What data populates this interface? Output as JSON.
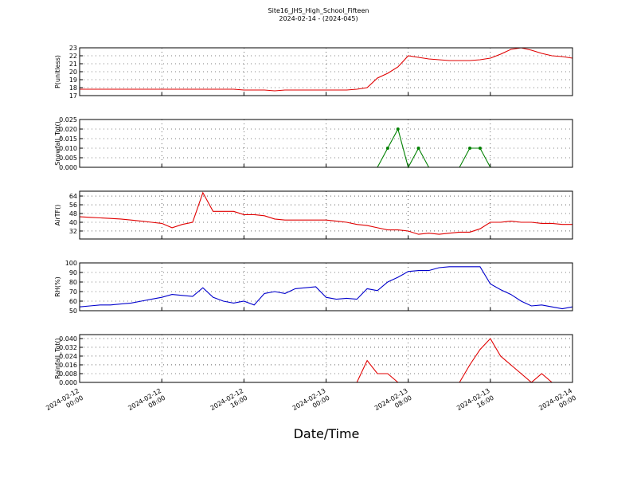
{
  "chart_data": [
    {
      "type": "line",
      "title": "Site16_JHS_High_School_Fifteen",
      "subtitle": "2024-02-14 - (2024-045)",
      "ylabel": "P(unitless)",
      "grid": true,
      "ylim": [
        17,
        23
      ],
      "yticks": [
        17,
        18,
        19,
        20,
        21,
        22,
        23
      ],
      "x": [
        "2024-02-12 00:00",
        "2024-02-12 01:00",
        "2024-02-12 02:00",
        "2024-02-12 03:00",
        "2024-02-12 04:00",
        "2024-02-12 05:00",
        "2024-02-12 06:00",
        "2024-02-12 07:00",
        "2024-02-12 08:00",
        "2024-02-12 09:00",
        "2024-02-12 10:00",
        "2024-02-12 11:00",
        "2024-02-12 12:00",
        "2024-02-12 13:00",
        "2024-02-12 14:00",
        "2024-02-12 15:00",
        "2024-02-12 16:00",
        "2024-02-12 17:00",
        "2024-02-12 18:00",
        "2024-02-12 19:00",
        "2024-02-12 20:00",
        "2024-02-12 21:00",
        "2024-02-12 22:00",
        "2024-02-12 23:00",
        "2024-02-13 00:00",
        "2024-02-13 01:00",
        "2024-02-13 02:00",
        "2024-02-13 03:00",
        "2024-02-13 04:00",
        "2024-02-13 05:00",
        "2024-02-13 06:00",
        "2024-02-13 07:00",
        "2024-02-13 08:00",
        "2024-02-13 09:00",
        "2024-02-13 10:00",
        "2024-02-13 11:00",
        "2024-02-13 12:00",
        "2024-02-13 13:00",
        "2024-02-13 14:00",
        "2024-02-13 15:00",
        "2024-02-13 16:00",
        "2024-02-13 17:00",
        "2024-02-13 18:00",
        "2024-02-13 19:00",
        "2024-02-13 20:00",
        "2024-02-13 21:00",
        "2024-02-13 22:00",
        "2024-02-13 23:00",
        "2024-02-14 00:00"
      ],
      "series": [
        {
          "name": "P",
          "color": "#e00000",
          "values": [
            17.8,
            17.8,
            17.8,
            17.8,
            17.8,
            17.8,
            17.8,
            17.8,
            17.8,
            17.8,
            17.8,
            17.8,
            17.8,
            17.8,
            17.8,
            17.8,
            17.7,
            17.7,
            17.7,
            17.6,
            17.7,
            17.7,
            17.7,
            17.7,
            17.7,
            17.7,
            17.7,
            17.8,
            18.0,
            19.2,
            19.8,
            20.6,
            22.0,
            21.8,
            21.6,
            21.5,
            21.4,
            21.4,
            21.4,
            21.5,
            21.7,
            22.2,
            22.8,
            23.0,
            22.7,
            22.3,
            22.0,
            21.9,
            21.7
          ]
        }
      ]
    },
    {
      "type": "line",
      "ylabel": "Snowfall_Tot()",
      "grid": true,
      "ylim": [
        0,
        0.025
      ],
      "yticks": [
        {
          "value": 0,
          "label": "0.000"
        },
        {
          "value": 0.005,
          "label": "0.005"
        },
        {
          "value": 0.01,
          "label": "0.010"
        },
        {
          "value": 0.015,
          "label": "0.015"
        },
        {
          "value": 0.02,
          "label": "0.020"
        },
        {
          "value": 0.025,
          "label": "0.025"
        }
      ],
      "x": [
        "2024-02-12 00:00",
        "2024-02-12 01:00",
        "2024-02-12 02:00",
        "2024-02-12 03:00",
        "2024-02-12 04:00",
        "2024-02-12 05:00",
        "2024-02-12 06:00",
        "2024-02-12 07:00",
        "2024-02-12 08:00",
        "2024-02-12 09:00",
        "2024-02-12 10:00",
        "2024-02-12 11:00",
        "2024-02-12 12:00",
        "2024-02-12 13:00",
        "2024-02-12 14:00",
        "2024-02-12 15:00",
        "2024-02-12 16:00",
        "2024-02-12 17:00",
        "2024-02-12 18:00",
        "2024-02-12 19:00",
        "2024-02-12 20:00",
        "2024-02-12 21:00",
        "2024-02-12 22:00",
        "2024-02-12 23:00",
        "2024-02-13 00:00",
        "2024-02-13 01:00",
        "2024-02-13 02:00",
        "2024-02-13 03:00",
        "2024-02-13 04:00",
        "2024-02-13 05:00",
        "2024-02-13 06:00",
        "2024-02-13 07:00",
        "2024-02-13 08:00",
        "2024-02-13 09:00",
        "2024-02-13 10:00",
        "2024-02-13 11:00",
        "2024-02-13 12:00",
        "2024-02-13 13:00",
        "2024-02-13 14:00",
        "2024-02-13 15:00",
        "2024-02-13 16:00",
        "2024-02-13 17:00",
        "2024-02-13 18:00",
        "2024-02-13 19:00",
        "2024-02-13 20:00",
        "2024-02-13 21:00",
        "2024-02-13 22:00",
        "2024-02-13 23:00",
        "2024-02-14 00:00"
      ],
      "series": [
        {
          "name": "Snowfall_Tot",
          "color": "#008000",
          "markers": true,
          "values": [
            0,
            0,
            0,
            0,
            0,
            0,
            0,
            0,
            0,
            0,
            0,
            0,
            0,
            0,
            0,
            0,
            0,
            0,
            0,
            0,
            0,
            0,
            0,
            0,
            0,
            0,
            0,
            0,
            0,
            0,
            0.01,
            0.02,
            0,
            0.01,
            0,
            0,
            0,
            0,
            0.01,
            0.01,
            0,
            0,
            0,
            0,
            0,
            0,
            0,
            0,
            0
          ]
        }
      ]
    },
    {
      "type": "line",
      "ylabel": "AirTF()",
      "grid": true,
      "ylim": [
        24.7,
        68.4
      ],
      "yticks": [
        32,
        40,
        48,
        56,
        64
      ],
      "x": [
        "2024-02-12 00:00",
        "2024-02-12 01:00",
        "2024-02-12 02:00",
        "2024-02-12 03:00",
        "2024-02-12 04:00",
        "2024-02-12 05:00",
        "2024-02-12 06:00",
        "2024-02-12 07:00",
        "2024-02-12 08:00",
        "2024-02-12 09:00",
        "2024-02-12 10:00",
        "2024-02-12 11:00",
        "2024-02-12 12:00",
        "2024-02-12 13:00",
        "2024-02-12 14:00",
        "2024-02-12 15:00",
        "2024-02-12 16:00",
        "2024-02-12 17:00",
        "2024-02-12 18:00",
        "2024-02-12 19:00",
        "2024-02-12 20:00",
        "2024-02-12 21:00",
        "2024-02-12 22:00",
        "2024-02-12 23:00",
        "2024-02-13 00:00",
        "2024-02-13 01:00",
        "2024-02-13 02:00",
        "2024-02-13 03:00",
        "2024-02-13 04:00",
        "2024-02-13 05:00",
        "2024-02-13 06:00",
        "2024-02-13 07:00",
        "2024-02-13 08:00",
        "2024-02-13 09:00",
        "2024-02-13 10:00",
        "2024-02-13 11:00",
        "2024-02-13 12:00",
        "2024-02-13 13:00",
        "2024-02-13 14:00",
        "2024-02-13 15:00",
        "2024-02-13 16:00",
        "2024-02-13 17:00",
        "2024-02-13 18:00",
        "2024-02-13 19:00",
        "2024-02-13 20:00",
        "2024-02-13 21:00",
        "2024-02-13 22:00",
        "2024-02-13 23:00",
        "2024-02-14 00:00"
      ],
      "series": [
        {
          "name": "AirTF",
          "color": "#e00000",
          "values": [
            45,
            44.5,
            44,
            43.5,
            43,
            42,
            41,
            40,
            39,
            35,
            38,
            40,
            67,
            50,
            50,
            50,
            47,
            47,
            46,
            43,
            42,
            42,
            42,
            42,
            42,
            41,
            40,
            38,
            37,
            35,
            33,
            33,
            32,
            29,
            30,
            29,
            30,
            31,
            31,
            34,
            40,
            40,
            41,
            40,
            40,
            39,
            39,
            38,
            38
          ]
        }
      ]
    },
    {
      "type": "line",
      "ylabel": "RH(%)",
      "grid": true,
      "ylim": [
        50,
        100
      ],
      "yticks": [
        50,
        60,
        70,
        80,
        90,
        100
      ],
      "x": [
        "2024-02-12 00:00",
        "2024-02-12 01:00",
        "2024-02-12 02:00",
        "2024-02-12 03:00",
        "2024-02-12 04:00",
        "2024-02-12 05:00",
        "2024-02-12 06:00",
        "2024-02-12 07:00",
        "2024-02-12 08:00",
        "2024-02-12 09:00",
        "2024-02-12 10:00",
        "2024-02-12 11:00",
        "2024-02-12 12:00",
        "2024-02-12 13:00",
        "2024-02-12 14:00",
        "2024-02-12 15:00",
        "2024-02-12 16:00",
        "2024-02-12 17:00",
        "2024-02-12 18:00",
        "2024-02-12 19:00",
        "2024-02-12 20:00",
        "2024-02-12 21:00",
        "2024-02-12 22:00",
        "2024-02-12 23:00",
        "2024-02-13 00:00",
        "2024-02-13 01:00",
        "2024-02-13 02:00",
        "2024-02-13 03:00",
        "2024-02-13 04:00",
        "2024-02-13 05:00",
        "2024-02-13 06:00",
        "2024-02-13 07:00",
        "2024-02-13 08:00",
        "2024-02-13 09:00",
        "2024-02-13 10:00",
        "2024-02-13 11:00",
        "2024-02-13 12:00",
        "2024-02-13 13:00",
        "2024-02-13 14:00",
        "2024-02-13 15:00",
        "2024-02-13 16:00",
        "2024-02-13 17:00",
        "2024-02-13 18:00",
        "2024-02-13 19:00",
        "2024-02-13 20:00",
        "2024-02-13 21:00",
        "2024-02-13 22:00",
        "2024-02-13 23:00",
        "2024-02-14 00:00"
      ],
      "series": [
        {
          "name": "RH",
          "color": "#0000cc",
          "values": [
            54,
            55,
            56,
            56,
            57,
            58,
            60,
            62,
            64,
            67,
            66,
            65,
            74,
            64,
            60,
            58,
            60,
            56,
            68,
            70,
            68,
            73,
            74,
            75,
            64,
            62,
            63,
            62,
            73,
            71,
            80,
            85,
            91,
            92,
            92,
            95,
            96,
            96,
            96,
            96,
            78,
            72,
            67,
            60,
            55,
            56,
            54,
            52,
            54
          ]
        }
      ]
    },
    {
      "type": "line",
      "ylabel": "Rainfall_Tot()",
      "xlabel": "Date/Time",
      "grid": true,
      "ylim": [
        0,
        0.0436
      ],
      "yticks": [
        {
          "value": 0,
          "label": "0.000"
        },
        {
          "value": 0.008,
          "label": "0.008"
        },
        {
          "value": 0.016,
          "label": "0.016"
        },
        {
          "value": 0.024,
          "label": "0.024"
        },
        {
          "value": 0.032,
          "label": "0.032"
        },
        {
          "value": 0.04,
          "label": "0.040"
        }
      ],
      "xlim": [
        "2024-02-12 00:00",
        "2024-02-14 00:00"
      ],
      "xticks": [
        {
          "value": "2024-02-12 00:00",
          "label": "2024-02-12\n00:00"
        },
        {
          "value": "2024-02-12 08:00",
          "label": "2024-02-12\n08:00"
        },
        {
          "value": "2024-02-12 16:00",
          "label": "2024-02-12\n16:00"
        },
        {
          "value": "2024-02-13 00:00",
          "label": "2024-02-13\n00:00"
        },
        {
          "value": "2024-02-13 08:00",
          "label": "2024-02-13\n08:00"
        },
        {
          "value": "2024-02-13 16:00",
          "label": "2024-02-13\n16:00"
        },
        {
          "value": "2024-02-14 00:00",
          "label": "2024-02-14\n00:00"
        }
      ],
      "x": [
        "2024-02-12 00:00",
        "2024-02-12 01:00",
        "2024-02-12 02:00",
        "2024-02-12 03:00",
        "2024-02-12 04:00",
        "2024-02-12 05:00",
        "2024-02-12 06:00",
        "2024-02-12 07:00",
        "2024-02-12 08:00",
        "2024-02-12 09:00",
        "2024-02-12 10:00",
        "2024-02-12 11:00",
        "2024-02-12 12:00",
        "2024-02-12 13:00",
        "2024-02-12 14:00",
        "2024-02-12 15:00",
        "2024-02-12 16:00",
        "2024-02-12 17:00",
        "2024-02-12 18:00",
        "2024-02-12 19:00",
        "2024-02-12 20:00",
        "2024-02-12 21:00",
        "2024-02-12 22:00",
        "2024-02-12 23:00",
        "2024-02-13 00:00",
        "2024-02-13 01:00",
        "2024-02-13 02:00",
        "2024-02-13 03:00",
        "2024-02-13 04:00",
        "2024-02-13 05:00",
        "2024-02-13 06:00",
        "2024-02-13 07:00",
        "2024-02-13 08:00",
        "2024-02-13 09:00",
        "2024-02-13 10:00",
        "2024-02-13 11:00",
        "2024-02-13 12:00",
        "2024-02-13 13:00",
        "2024-02-13 14:00",
        "2024-02-13 15:00",
        "2024-02-13 16:00",
        "2024-02-13 17:00",
        "2024-02-13 18:00",
        "2024-02-13 19:00",
        "2024-02-13 20:00",
        "2024-02-13 21:00",
        "2024-02-13 22:00",
        "2024-02-13 23:00",
        "2024-02-14 00:00"
      ],
      "series": [
        {
          "name": "Rainfall_Tot",
          "color": "#e00000",
          "values": [
            0,
            0,
            0,
            0,
            0,
            0,
            0,
            0,
            0,
            0,
            0,
            0,
            0,
            0,
            0,
            0,
            0,
            0,
            0,
            0,
            0,
            0,
            0,
            0,
            0,
            0,
            0,
            0,
            0.02,
            0.008,
            0.008,
            0,
            0,
            0,
            0,
            0,
            0,
            0,
            0.016,
            0.03,
            0.04,
            0.024,
            0.016,
            0.008,
            0,
            0.008,
            0,
            null,
            null
          ]
        }
      ]
    }
  ]
}
